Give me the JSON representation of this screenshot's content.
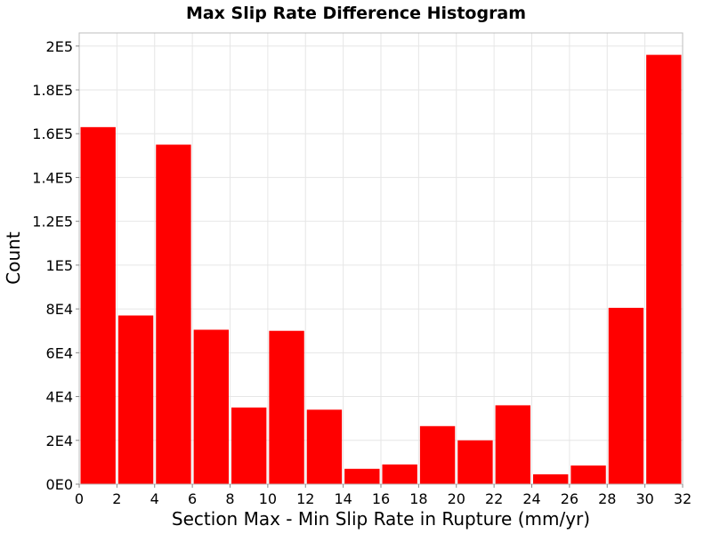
{
  "chart_data": {
    "type": "bar",
    "title": "Max Slip Rate Difference Histogram",
    "xlabel": "Section Max - Min Slip Rate in Rupture (mm/yr)",
    "ylabel": "Count",
    "xlim": [
      0,
      32
    ],
    "ylim": [
      0,
      206000
    ],
    "bin_width": 2,
    "bins": [
      {
        "x0": 0,
        "x1": 2,
        "value": 163000
      },
      {
        "x0": 2,
        "x1": 4,
        "value": 77000
      },
      {
        "x0": 4,
        "x1": 6,
        "value": 155000
      },
      {
        "x0": 6,
        "x1": 8,
        "value": 70500
      },
      {
        "x0": 8,
        "x1": 10,
        "value": 35000
      },
      {
        "x0": 10,
        "x1": 12,
        "value": 70000
      },
      {
        "x0": 12,
        "x1": 14,
        "value": 34000
      },
      {
        "x0": 14,
        "x1": 16,
        "value": 7000
      },
      {
        "x0": 16,
        "x1": 18,
        "value": 9000
      },
      {
        "x0": 18,
        "x1": 20,
        "value": 26500
      },
      {
        "x0": 20,
        "x1": 22,
        "value": 20000
      },
      {
        "x0": 22,
        "x1": 24,
        "value": 36000
      },
      {
        "x0": 24,
        "x1": 26,
        "value": 4500
      },
      {
        "x0": 26,
        "x1": 28,
        "value": 8500
      },
      {
        "x0": 28,
        "x1": 30,
        "value": 80500
      },
      {
        "x0": 30,
        "x1": 32,
        "value": 196000
      }
    ],
    "x_ticks": [
      {
        "value": 0,
        "label": "0"
      },
      {
        "value": 2,
        "label": "2"
      },
      {
        "value": 4,
        "label": "4"
      },
      {
        "value": 6,
        "label": "6"
      },
      {
        "value": 8,
        "label": "8"
      },
      {
        "value": 10,
        "label": "10"
      },
      {
        "value": 12,
        "label": "12"
      },
      {
        "value": 14,
        "label": "14"
      },
      {
        "value": 16,
        "label": "16"
      },
      {
        "value": 18,
        "label": "18"
      },
      {
        "value": 20,
        "label": "20"
      },
      {
        "value": 22,
        "label": "22"
      },
      {
        "value": 24,
        "label": "24"
      },
      {
        "value": 26,
        "label": "26"
      },
      {
        "value": 28,
        "label": "28"
      },
      {
        "value": 30,
        "label": "30"
      },
      {
        "value": 32,
        "label": "32"
      }
    ],
    "y_ticks": [
      {
        "value": 0,
        "label": "0E0"
      },
      {
        "value": 20000,
        "label": "2E4"
      },
      {
        "value": 40000,
        "label": "4E4"
      },
      {
        "value": 60000,
        "label": "6E4"
      },
      {
        "value": 80000,
        "label": "8E4"
      },
      {
        "value": 100000,
        "label": "1E5"
      },
      {
        "value": 120000,
        "label": "1.2E5"
      },
      {
        "value": 140000,
        "label": "1.4E5"
      },
      {
        "value": 160000,
        "label": "1.6E5"
      },
      {
        "value": 180000,
        "label": "1.8E5"
      },
      {
        "value": 200000,
        "label": "2E5"
      }
    ],
    "grid": true,
    "legend": "none",
    "colors": {
      "bar": "#ff0000",
      "grid": "#e6e6e6",
      "frame": "#bdbdbd"
    }
  }
}
